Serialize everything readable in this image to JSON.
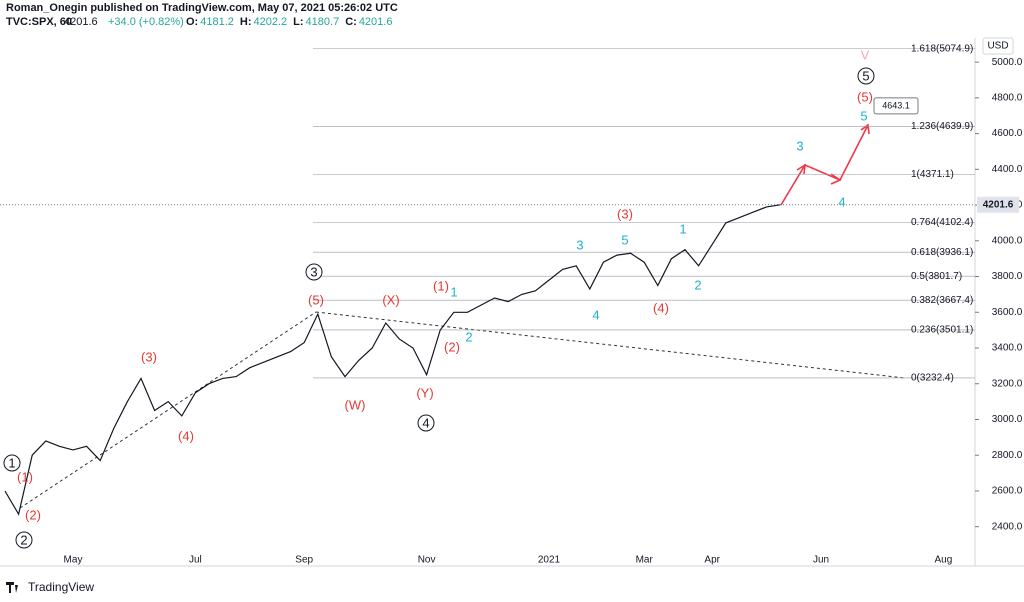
{
  "header": {
    "publisher": "Roman_Onegin published on TradingView.com, May 07, 2021 05:26:02 UTC",
    "symbol": "TVC:SPX, 60",
    "last": "4201.6",
    "change": "+34.0 (+0.82%)",
    "ohlc": [
      {
        "key": "O:",
        "value": "4181.2"
      },
      {
        "key": "H:",
        "value": "4202.2"
      },
      {
        "key": "L:",
        "value": "4180.7"
      },
      {
        "key": "C:",
        "value": "4201.6"
      }
    ]
  },
  "footer": {
    "brand": "TradingView"
  },
  "chart_data": {
    "type": "line",
    "currency": "USD",
    "categories": [
      null,
      null,
      null,
      null,
      null,
      "May",
      null,
      null,
      null,
      null,
      null,
      null,
      null,
      null,
      "Jul",
      null,
      null,
      null,
      null,
      null,
      null,
      null,
      "Sep",
      null,
      null,
      null,
      null,
      null,
      null,
      null,
      null,
      "Nov",
      null,
      null,
      null,
      null,
      null,
      null,
      null,
      null,
      "2021",
      null,
      null,
      null,
      null,
      null,
      null,
      "Mar",
      null,
      null,
      null,
      null,
      "Apr",
      null,
      null,
      null,
      null,
      null,
      null,
      null,
      "Jun",
      null,
      null,
      null,
      null,
      null,
      null,
      null,
      null,
      "Aug",
      null,
      null
    ],
    "series": [
      {
        "name": "TVC:SPX",
        "color": "#131722",
        "values": [
          2600,
          2470,
          2800,
          2880,
          2850,
          2830,
          2850,
          2770,
          2950,
          3100,
          3230,
          3050,
          3100,
          3020,
          3150,
          3200,
          3230,
          3240,
          3290,
          3320,
          3350,
          3380,
          3430,
          3590,
          3350,
          3240,
          3330,
          3400,
          3540,
          3450,
          3400,
          3250,
          3500,
          3600,
          3600,
          3640,
          3680,
          3660,
          3700,
          3720,
          3780,
          3840,
          3860,
          3730,
          3880,
          3920,
          3930,
          3880,
          3750,
          3900,
          3950,
          3860,
          3980,
          4100,
          4130,
          4160,
          4190,
          4201.6,
          null,
          null,
          null,
          null,
          null,
          null,
          null,
          null,
          null,
          null,
          null,
          null,
          null,
          null
        ]
      }
    ],
    "ylim": [
      2180,
      5135
    ],
    "yticks": [
      {
        "value": 2400,
        "label": "2400.0"
      },
      {
        "value": 2600,
        "label": "2600.0"
      },
      {
        "value": 2800,
        "label": "2800.0"
      },
      {
        "value": 3000,
        "label": "3000.0"
      },
      {
        "value": 3200,
        "label": "3200.0"
      },
      {
        "value": 3400,
        "label": "3400.0"
      },
      {
        "value": 3600,
        "label": "3600.0"
      },
      {
        "value": 3800,
        "label": "3800.0"
      },
      {
        "value": 4000,
        "label": "4000.0"
      },
      {
        "value": 4200,
        "label": "4200.0"
      },
      {
        "value": 4400,
        "label": "4400.0"
      },
      {
        "value": 4600,
        "label": "4600.0"
      },
      {
        "value": 4800,
        "label": "4800.0"
      },
      {
        "value": 5000,
        "label": "5000.0"
      }
    ],
    "last_price": {
      "value": 4201.6,
      "label": "4201.6"
    },
    "callout": {
      "value": 4643.1,
      "label": "4643.1"
    },
    "fib_levels": [
      {
        "value": 5074.9,
        "label": "1.618(5074.9)"
      },
      {
        "value": 4639.9,
        "label": "1.236(4639.9)"
      },
      {
        "value": 4371.1,
        "label": "1(4371.1)"
      },
      {
        "value": 4102.4,
        "label": "0.764(4102.4)"
      },
      {
        "value": 3936.1,
        "label": "0.618(3936.1)"
      },
      {
        "value": 3801.7,
        "label": "0.5(3801.7)"
      },
      {
        "value": 3667.4,
        "label": "0.382(3667.4)"
      },
      {
        "value": 3501.1,
        "label": "0.236(3501.1)"
      },
      {
        "value": 3232.4,
        "label": "0(3232.4)"
      }
    ],
    "annotations": [
      {
        "text": "1",
        "color": "#131722",
        "circled": true
      },
      {
        "text": "2",
        "color": "#131722",
        "circled": true
      },
      {
        "text": "3",
        "color": "#131722",
        "circled": true
      },
      {
        "text": "4",
        "color": "#131722",
        "circled": true
      },
      {
        "text": "5",
        "color": "#131722",
        "circled": true
      },
      {
        "text": "(1)",
        "color": "#e53935"
      },
      {
        "text": "(2)",
        "color": "#e53935"
      },
      {
        "text": "(3)",
        "color": "#e53935"
      },
      {
        "text": "(4)",
        "color": "#e53935"
      },
      {
        "text": "(5)",
        "color": "#e53935"
      },
      {
        "text": "(W)",
        "color": "#e53935"
      },
      {
        "text": "(X)",
        "color": "#e53935"
      },
      {
        "text": "(Y)",
        "color": "#e53935"
      },
      {
        "text": "(1)",
        "color": "#e53935"
      },
      {
        "text": "(2)",
        "color": "#e53935"
      },
      {
        "text": "(3)",
        "color": "#e53935"
      },
      {
        "text": "(4)",
        "color": "#e53935"
      },
      {
        "text": "(5)",
        "color": "#e53935"
      },
      {
        "text": "V",
        "color": "#f8a5b5"
      },
      {
        "text": "1",
        "color": "#1fb1cc"
      },
      {
        "text": "2",
        "color": "#1fb1cc"
      },
      {
        "text": "3",
        "color": "#1fb1cc"
      },
      {
        "text": "4",
        "color": "#1fb1cc"
      },
      {
        "text": "5",
        "color": "#1fb1cc"
      },
      {
        "text": "1",
        "color": "#1fb1cc"
      },
      {
        "text": "2",
        "color": "#1fb1cc"
      },
      {
        "text": "3",
        "color": "#1fb1cc"
      },
      {
        "text": "4",
        "color": "#1fb1cc"
      },
      {
        "text": "5",
        "color": "#1fb1cc"
      }
    ]
  }
}
